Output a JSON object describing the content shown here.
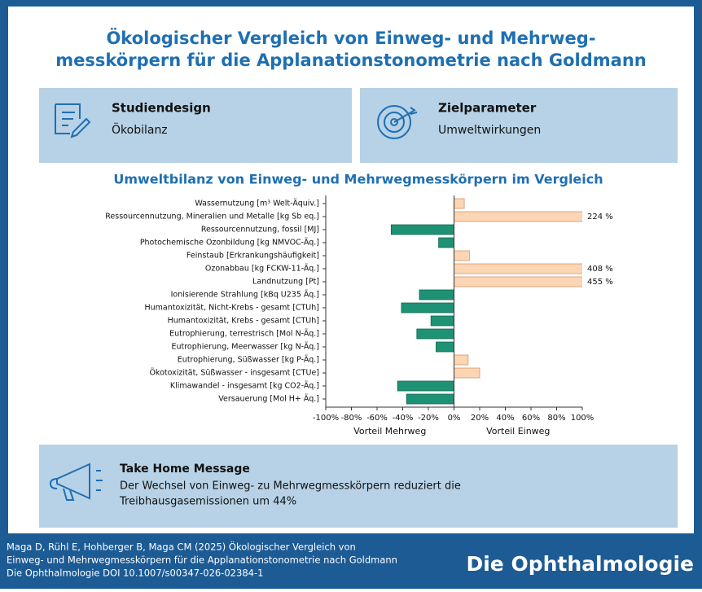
{
  "header": {
    "title_lines": [
      "Ökologischer Vergleich von Einweg- und Mehrweg-",
      "messkörpern für die Applanationstonometrie nach Goldmann"
    ]
  },
  "boxes": [
    {
      "title": "Studiendesign",
      "text": "Ökobilanz"
    },
    {
      "title": "Zielparameter",
      "text": "Umweltwirkungen"
    }
  ],
  "chart_data": {
    "type": "barh",
    "title": "Umweltbilanz von Einweg- und Mehrwegmesskörpern im Vergleich",
    "categories": [
      "Wassernutzung [m³ Welt-Äquiv.]",
      "Ressourcennutzung, Mineralien und Metalle [kg Sb eq.]",
      "Ressourcennutzung, fossil [MJ]",
      "Photochemische Ozonbildung [kg NMVOC-Äq.]",
      "Feinstaub [Erkrankungshäufigkeit]",
      "Ozonabbau [kg FCKW-11-Äq.]",
      "Landnutzung [Pt]",
      "Ionisierende Strahlung [kBq U235 Äq.]",
      "Humantoxizität, Nicht-Krebs - gesamt [CTUh]",
      "Humantoxizität, Krebs - gesamt [CTUh]",
      "Eutrophierung, terrestrisch [Mol N-Äq.]",
      "Eutrophierung, Meerwasser [kg N-Äq.]",
      "Eutrophierung, Süßwasser [kg P-Äq.]",
      "Ökotoxizität, Süßwasser - insgesamt [CTUe]",
      "Klimawandel - insgesamt [kg CO2-Äq.]",
      "Versauerung [Mol H+ Äq.]"
    ],
    "values": [
      8,
      224,
      -49,
      -12,
      12,
      408,
      455,
      -27,
      -41,
      -18,
      -29,
      -14,
      11,
      20,
      -44,
      -37
    ],
    "value_labels": [
      null,
      "224 %",
      null,
      null,
      null,
      "408 %",
      "455 %",
      null,
      null,
      null,
      null,
      null,
      null,
      null,
      null,
      null
    ],
    "positive_color": "#fcd5b4",
    "negative_color": "#1e9274",
    "xlim": [
      -100,
      100
    ],
    "xticks": [
      {
        "value": -100,
        "label": "-100%"
      },
      {
        "value": -80,
        "label": "-80%"
      },
      {
        "value": -60,
        "label": "-60%"
      },
      {
        "value": -40,
        "label": "-40%"
      },
      {
        "value": -20,
        "label": "-20%"
      },
      {
        "value": 0,
        "label": "0%"
      },
      {
        "value": 20,
        "label": "20%"
      },
      {
        "value": 40,
        "label": "40%"
      },
      {
        "value": 60,
        "label": "60%"
      },
      {
        "value": 80,
        "label": "80%"
      },
      {
        "value": 100,
        "label": "100%"
      }
    ],
    "xlabels": [
      "Vorteil Mehrweg",
      "Vorteil Einweg"
    ]
  },
  "message": {
    "title": "Take Home Message",
    "lines": [
      "Der Wechsel von Einweg- zu Mehrwegmesskörpern reduziert die",
      "Treibhausgasemissionen um 44%"
    ]
  },
  "footer": {
    "citation": [
      "Maga D, Rühl E, Hohberger B, Maga CM (2025) Ökologischer Vergleich von",
      "Einweg- und Mehrwegmesskörpern für die Applanationstonometrie nach Goldmann",
      "Die Ophthalmologie DOI 10.1007/s00347-026-02384-1"
    ],
    "journal": "Die Ophthalmologie"
  }
}
